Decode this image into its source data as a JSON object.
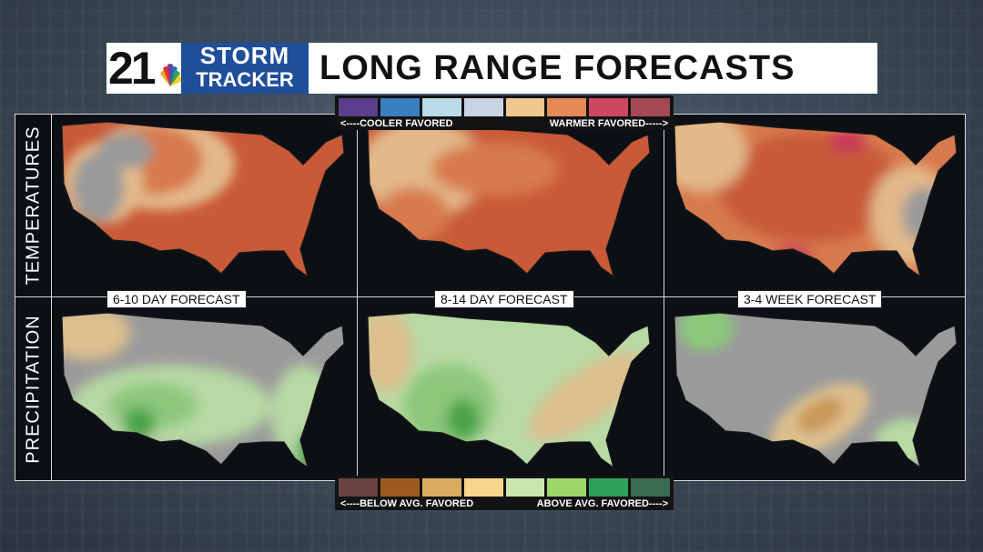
{
  "header": {
    "logo_number": "21",
    "logo_line1": "STORM",
    "logo_line2": "TRACKER",
    "title": "LONG RANGE FORECASTS"
  },
  "temperature_legend": {
    "colors": [
      "#5a3f8c",
      "#3a7fc1",
      "#b9dbe8",
      "#c9d4e2",
      "#f0c78f",
      "#e58a55",
      "#cc4862",
      "#a34a52"
    ],
    "left_label": "<----COOLER FAVORED",
    "right_label": "WARMER FAVORED----->"
  },
  "precipitation_legend": {
    "colors": [
      "#6a4242",
      "#9c5a22",
      "#d9ab5e",
      "#f5d68a",
      "#c8e6b0",
      "#9ed66a",
      "#2fa05a",
      "#3a6a52"
    ],
    "left_label": "<----BELOW AVG. FAVORED",
    "right_label": "ABOVE AVG. FAVORED---->"
  },
  "rows": {
    "temperatures": "TEMPERATURES",
    "precipitation": "PRECIPITATION"
  },
  "columns": [
    {
      "label": "6-10 DAY FORECAST"
    },
    {
      "label": "8-14 DAY FORECAST"
    },
    {
      "label": "3-4 WEEK FORECAST"
    }
  ],
  "colors": {
    "background": "#3e4c5a",
    "brand_blue": "#1f4e9a",
    "land_neutral": "#9a9a9a",
    "warm_light": "#e3b98a",
    "warm_mid": "#d77a4e",
    "warm_strong": "#c85a38",
    "hot": "#c8345a",
    "green_light": "#b7d9a4",
    "green_mid": "#8cc77a",
    "green_strong": "#4aa24a",
    "dry_light": "#ddbf8e",
    "dry_mid": "#c99a5a"
  }
}
